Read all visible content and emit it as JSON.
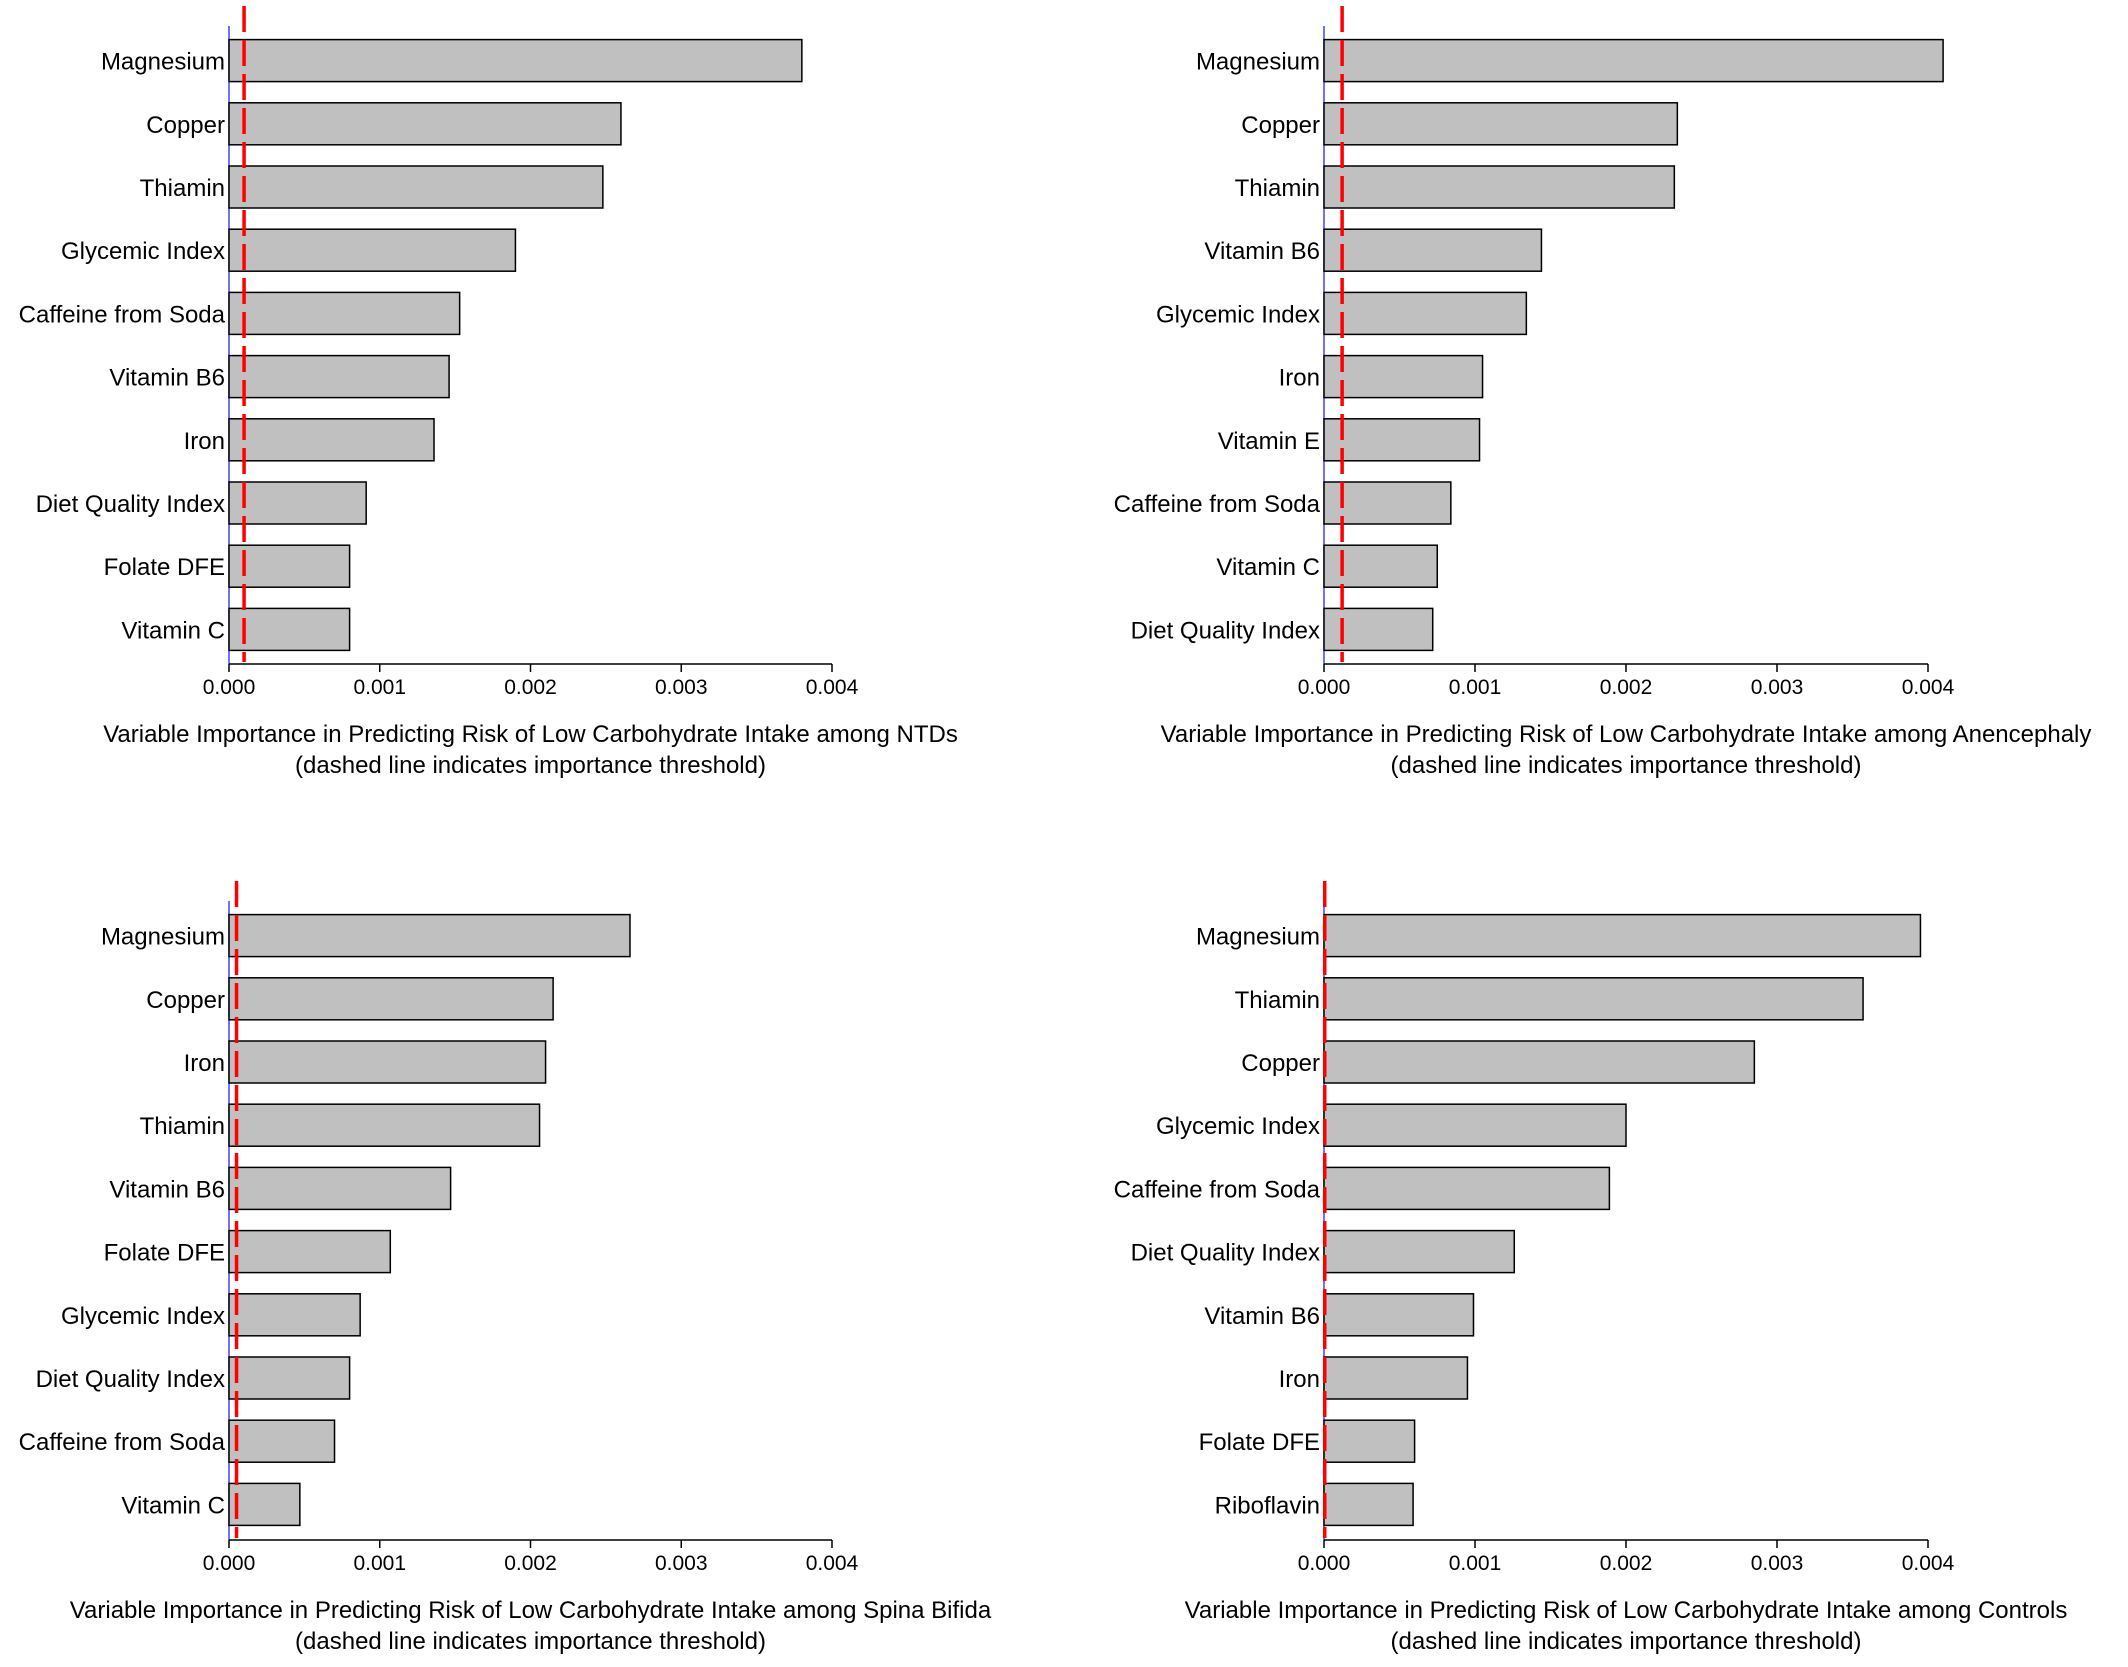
{
  "chart_data": [
    {
      "type": "bar",
      "orientation": "horizontal",
      "categories": [
        "Magnesium",
        "Copper",
        "Thiamin",
        "Glycemic Index",
        "Caffeine from Soda",
        "Vitamin B6",
        "Iron",
        "Diet Quality Index",
        "Folate DFE",
        "Vitamin C"
      ],
      "values": [
        0.0038,
        0.0026,
        0.00248,
        0.0019,
        0.00153,
        0.00146,
        0.00136,
        0.00091,
        0.0008,
        0.0008
      ],
      "threshold": 0.0001,
      "xlim": [
        0,
        0.004
      ],
      "xticks": [
        "0.000",
        "0.001",
        "0.002",
        "0.003",
        "0.004"
      ],
      "caption_line1": "Variable Importance in Predicting Risk of Low Carbohydrate Intake among NTDs",
      "caption_line2": "(dashed line indicates importance threshold)"
    },
    {
      "type": "bar",
      "orientation": "horizontal",
      "categories": [
        "Magnesium",
        "Copper",
        "Thiamin",
        "Vitamin B6",
        "Glycemic Index",
        "Iron",
        "Vitamin E",
        "Caffeine from Soda",
        "Vitamin C",
        "Diet Quality Index"
      ],
      "values": [
        0.0041,
        0.00234,
        0.00232,
        0.00144,
        0.00134,
        0.00105,
        0.00103,
        0.00084,
        0.00075,
        0.00072
      ],
      "threshold": 0.00012,
      "xlim": [
        0,
        0.004
      ],
      "xticks": [
        "0.000",
        "0.001",
        "0.002",
        "0.003",
        "0.004"
      ],
      "caption_line1": "Variable Importance in Predicting Risk of Low Carbohydrate Intake among Anencephaly",
      "caption_line2": "(dashed line indicates importance threshold)"
    },
    {
      "type": "bar",
      "orientation": "horizontal",
      "categories": [
        "Magnesium",
        "Copper",
        "Iron",
        "Thiamin",
        "Vitamin B6",
        "Folate DFE",
        "Glycemic Index",
        "Diet Quality Index",
        "Caffeine from Soda",
        "Vitamin C"
      ],
      "values": [
        0.00266,
        0.00215,
        0.0021,
        0.00206,
        0.00147,
        0.00107,
        0.00087,
        0.0008,
        0.0007,
        0.00047
      ],
      "threshold": 5e-05,
      "xlim": [
        0,
        0.004
      ],
      "xticks": [
        "0.000",
        "0.001",
        "0.002",
        "0.003",
        "0.004"
      ],
      "caption_line1": "Variable Importance in Predicting Risk of Low Carbohydrate Intake among Spina Bifida",
      "caption_line2": "(dashed line indicates importance threshold)"
    },
    {
      "type": "bar",
      "orientation": "horizontal",
      "categories": [
        "Magnesium",
        "Thiamin",
        "Copper",
        "Glycemic Index",
        "Caffeine from Soda",
        "Diet Quality Index",
        "Vitamin B6",
        "Iron",
        "Folate DFE",
        "Riboflavin"
      ],
      "values": [
        0.00395,
        0.00357,
        0.00285,
        0.002,
        0.00189,
        0.00126,
        0.00099,
        0.00095,
        0.0006,
        0.00059
      ],
      "threshold": 5e-06,
      "xlim": [
        0,
        0.004
      ],
      "xticks": [
        "0.000",
        "0.001",
        "0.002",
        "0.003",
        "0.004"
      ],
      "caption_line1": "Variable Importance in Predicting Risk of Low Carbohydrate Intake among Controls",
      "caption_line2": "(dashed line indicates importance threshold)"
    }
  ],
  "colors": {
    "bar_fill": "#c0c0c0",
    "bar_stroke": "#000000",
    "threshold": "#ff0000",
    "zero_line": "#4444ff",
    "axis": "#000000",
    "text": "#000000"
  }
}
